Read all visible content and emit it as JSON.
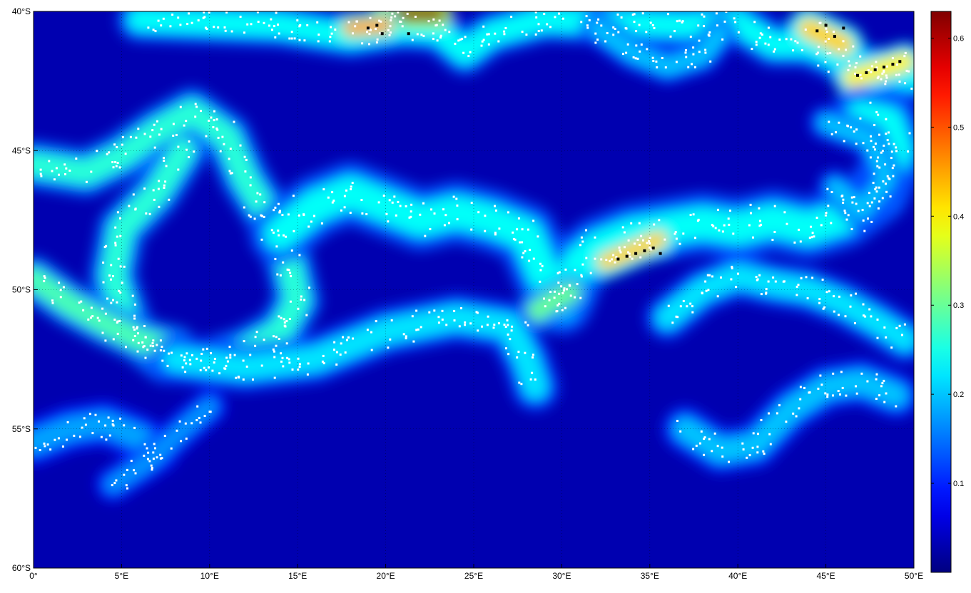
{
  "map": {
    "lon_range": [
      0,
      50
    ],
    "lat_range": [
      -60,
      -40
    ],
    "lon_ticks": [
      {
        "value": 0,
        "label": "0°"
      },
      {
        "value": 5,
        "label": "5°E"
      },
      {
        "value": 10,
        "label": "10°E"
      },
      {
        "value": 15,
        "label": "15°E"
      },
      {
        "value": 20,
        "label": "20°E"
      },
      {
        "value": 25,
        "label": "25°E"
      },
      {
        "value": 30,
        "label": "30°E"
      },
      {
        "value": 35,
        "label": "35°E"
      },
      {
        "value": 40,
        "label": "40°E"
      },
      {
        "value": 45,
        "label": "45°E"
      },
      {
        "value": 50,
        "label": "50°E"
      }
    ],
    "lat_ticks": [
      {
        "value": -40,
        "label": "40°S"
      },
      {
        "value": -45,
        "label": "45°S"
      },
      {
        "value": -50,
        "label": "50°S"
      },
      {
        "value": -55,
        "label": "55°S"
      },
      {
        "value": -60,
        "label": "60°S"
      }
    ],
    "grid": "dotted at labelled ticks",
    "background_value": 0.03,
    "colormap": "jet",
    "colorbar": {
      "range": [
        0,
        0.63
      ],
      "ticks": [
        {
          "value": 0.1,
          "label": "0.1"
        },
        {
          "value": 0.2,
          "label": "0.2"
        },
        {
          "value": 0.3,
          "label": "0.3"
        },
        {
          "value": 0.4,
          "label": "0.4"
        },
        {
          "value": 0.5,
          "label": "0.5"
        },
        {
          "value": 0.6,
          "label": "0.6"
        }
      ]
    },
    "colors": {
      "marker_white": "#ffffff",
      "marker_black": "#000000",
      "grid": "#000000"
    },
    "features": [
      {
        "name": "front-40S",
        "value": 0.24,
        "width_deg": 1.3,
        "path": [
          [
            6,
            -40.3
          ],
          [
            10,
            -40.4
          ],
          [
            14,
            -40.5
          ],
          [
            18,
            -40.9
          ],
          [
            21,
            -40.6
          ],
          [
            23,
            -40.7
          ],
          [
            24.5,
            -41.5
          ],
          [
            26,
            -40.8
          ],
          [
            29,
            -40.3
          ],
          [
            33,
            -40.4
          ],
          [
            37,
            -40.5
          ],
          [
            40,
            -40.4
          ],
          [
            42,
            -41.2
          ],
          [
            44,
            -41.2
          ],
          [
            46,
            -41.8
          ],
          [
            49,
            -42.3
          ],
          [
            50,
            -42.4
          ]
        ]
      },
      {
        "name": "front-north-lobe",
        "value": 0.2,
        "width_deg": 1.0,
        "path": [
          [
            32,
            -40.6
          ],
          [
            34,
            -41.5
          ],
          [
            36,
            -42.0
          ],
          [
            38,
            -41.6
          ],
          [
            39,
            -40.8
          ]
        ]
      },
      {
        "name": "hot-patch-41S",
        "value": 0.63,
        "width_deg": 0.8,
        "path": [
          [
            20,
            -40.1
          ],
          [
            23,
            -40.1
          ]
        ]
      },
      {
        "name": "hot-patch-18E",
        "value": 0.45,
        "width_deg": 0.9,
        "path": [
          [
            18,
            -40.6
          ],
          [
            20,
            -40.5
          ]
        ]
      },
      {
        "name": "hot-patch-45E",
        "value": 0.42,
        "width_deg": 1.2,
        "path": [
          [
            44,
            -40.6
          ],
          [
            46,
            -41.2
          ]
        ]
      },
      {
        "name": "hot-patch-48E",
        "value": 0.4,
        "width_deg": 1.1,
        "path": [
          [
            46.5,
            -42.4
          ],
          [
            49.5,
            -41.8
          ]
        ]
      },
      {
        "name": "ring-west",
        "value": 0.26,
        "width_deg": 1.4,
        "path": [
          [
            0,
            -45.5
          ],
          [
            3,
            -45.8
          ],
          [
            5,
            -45.2
          ],
          [
            7,
            -44.3
          ],
          [
            9,
            -43.6
          ],
          [
            11,
            -44.5
          ],
          [
            12,
            -46.0
          ],
          [
            13.5,
            -47.5
          ],
          [
            14.5,
            -49.0
          ],
          [
            15,
            -50.4
          ],
          [
            14,
            -51.5
          ],
          [
            12,
            -52.2
          ],
          [
            10,
            -52.6
          ],
          [
            7.5,
            -52.5
          ],
          [
            5.5,
            -51.5
          ],
          [
            4.5,
            -49.5
          ],
          [
            5,
            -47.8
          ],
          [
            7,
            -46.5
          ],
          [
            8.5,
            -45.0
          ]
        ]
      },
      {
        "name": "front-50S-west",
        "value": 0.28,
        "width_deg": 1.3,
        "path": [
          [
            0,
            -49.6
          ],
          [
            2,
            -50.5
          ],
          [
            4,
            -51.2
          ],
          [
            6,
            -51.8
          ],
          [
            8,
            -52.1
          ]
        ]
      },
      {
        "name": "main-jet",
        "value": 0.24,
        "width_deg": 1.8,
        "path": [
          [
            14,
            -48.0
          ],
          [
            16,
            -47.0
          ],
          [
            18,
            -46.5
          ],
          [
            20,
            -47.0
          ],
          [
            22,
            -47.5
          ],
          [
            24,
            -47.2
          ],
          [
            26,
            -47.5
          ],
          [
            28,
            -48.0
          ],
          [
            29,
            -49.5
          ],
          [
            30,
            -50.5
          ],
          [
            31,
            -49.0
          ],
          [
            32,
            -48.5
          ],
          [
            34,
            -48.0
          ],
          [
            36,
            -47.8
          ],
          [
            38,
            -47.6
          ],
          [
            40,
            -47.8
          ],
          [
            42,
            -47.5
          ],
          [
            44,
            -47.8
          ],
          [
            46,
            -47.4
          ],
          [
            48,
            -46.5
          ],
          [
            49,
            -45.0
          ],
          [
            48.5,
            -44.0
          ],
          [
            47,
            -43.8
          ]
        ]
      },
      {
        "name": "jet-hotspot-35E",
        "value": 0.42,
        "width_deg": 1.0,
        "path": [
          [
            32.5,
            -49.0
          ],
          [
            35.5,
            -48.2
          ]
        ]
      },
      {
        "name": "jet-branch-30E",
        "value": 0.3,
        "width_deg": 1.1,
        "path": [
          [
            28.5,
            -50.8
          ],
          [
            29.5,
            -50.4
          ],
          [
            30.5,
            -50.1
          ]
        ]
      },
      {
        "name": "southern-branch",
        "value": 0.22,
        "width_deg": 1.4,
        "path": [
          [
            8,
            -52.5
          ],
          [
            12,
            -52.8
          ],
          [
            16,
            -52.5
          ],
          [
            20,
            -51.5
          ],
          [
            24,
            -51.0
          ],
          [
            27,
            -51.3
          ],
          [
            28,
            -52.5
          ],
          [
            28.5,
            -53.5
          ]
        ]
      },
      {
        "name": "front-50S-east",
        "value": 0.22,
        "width_deg": 1.3,
        "path": [
          [
            36,
            -51.0
          ],
          [
            38,
            -50.0
          ],
          [
            40,
            -49.5
          ],
          [
            42,
            -49.8
          ],
          [
            44,
            -50.0
          ],
          [
            46,
            -50.5
          ],
          [
            48,
            -51.2
          ],
          [
            49.5,
            -51.8
          ]
        ]
      },
      {
        "name": "south-tongue-55S",
        "value": 0.18,
        "width_deg": 1.3,
        "path": [
          [
            0,
            -55.5
          ],
          [
            2,
            -55.0
          ],
          [
            4,
            -54.8
          ],
          [
            6,
            -55.3
          ],
          [
            7,
            -55.8
          ]
        ]
      },
      {
        "name": "south-arc-8E",
        "value": 0.17,
        "width_deg": 1.0,
        "path": [
          [
            4.5,
            -57.0
          ],
          [
            6.5,
            -56.2
          ],
          [
            8.5,
            -55.0
          ],
          [
            10,
            -54.2
          ]
        ]
      },
      {
        "name": "south-arc-east",
        "value": 0.2,
        "width_deg": 1.3,
        "path": [
          [
            37,
            -55.0
          ],
          [
            39,
            -55.8
          ],
          [
            41,
            -55.6
          ],
          [
            43,
            -54.3
          ],
          [
            45,
            -53.5
          ],
          [
            47,
            -53.3
          ],
          [
            49,
            -53.8
          ]
        ]
      },
      {
        "name": "eddy-45E",
        "value": 0.2,
        "width_deg": 1.0,
        "path": [
          [
            45,
            -44.0
          ],
          [
            47.5,
            -44.6
          ],
          [
            48.5,
            -46.0
          ],
          [
            47,
            -47.2
          ],
          [
            45.5,
            -46.3
          ]
        ]
      }
    ],
    "black_markers": [
      [
        19.0,
        -40.6
      ],
      [
        19.5,
        -40.5
      ],
      [
        19.8,
        -40.8
      ],
      [
        21.3,
        -40.8
      ],
      [
        44.5,
        -40.7
      ],
      [
        45.0,
        -40.5
      ],
      [
        45.5,
        -40.9
      ],
      [
        46.0,
        -40.6
      ],
      [
        46.8,
        -42.3
      ],
      [
        47.3,
        -42.2
      ],
      [
        47.8,
        -42.1
      ],
      [
        48.3,
        -42.0
      ],
      [
        48.8,
        -41.9
      ],
      [
        49.2,
        -41.8
      ],
      [
        33.2,
        -48.9
      ],
      [
        33.7,
        -48.8
      ],
      [
        34.2,
        -48.7
      ],
      [
        34.7,
        -48.6
      ],
      [
        35.2,
        -48.5
      ],
      [
        35.6,
        -48.7
      ]
    ]
  }
}
